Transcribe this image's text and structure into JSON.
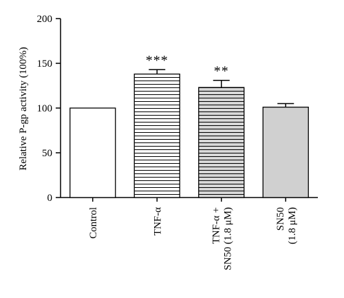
{
  "chart_data": {
    "type": "bar",
    "ylabel": "Relative P-gp activity (100%)",
    "xlabel": "",
    "ylim": [
      0,
      200
    ],
    "yticks": [
      0,
      50,
      100,
      150,
      200
    ],
    "grid": false,
    "categories": [
      {
        "lines": [
          "Control"
        ]
      },
      {
        "lines": [
          "TNF-α"
        ]
      },
      {
        "lines": [
          "TNF-α +",
          "SN50 (1.8 μM)"
        ]
      },
      {
        "lines": [
          "SN50",
          "(1.8 μM)"
        ]
      }
    ],
    "values": [
      100,
      138,
      123,
      101
    ],
    "errors": [
      0,
      5,
      8,
      4
    ],
    "fills": [
      "#ffffff",
      "hstripe-white",
      "hstripe-grey",
      "#d0d0d0"
    ],
    "significance": [
      "",
      "***",
      "**",
      ""
    ]
  }
}
